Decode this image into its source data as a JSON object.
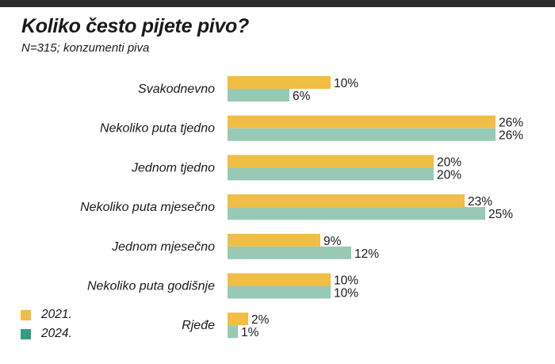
{
  "title": "Koliko često pijete pivo?",
  "subtitle": "N=315; konzumenti piva",
  "colors": {
    "y2021": "#f0bd45",
    "y2024": "#98c9b4",
    "legend2024": "#2f9f80",
    "topbar": "#2b2b2b"
  },
  "legend": [
    {
      "label": "2021.",
      "color": "#f0bd45"
    },
    {
      "label": "2024.",
      "color": "#2f9f80"
    }
  ],
  "chart_data": {
    "type": "bar",
    "orientation": "horizontal",
    "categories": [
      "Svakodnevno",
      "Nekoliko puta tjedno",
      "Jednom tjedno",
      "Nekoliko puta mjesečno",
      "Jednom mjesečno",
      "Nekoliko puta godišnje",
      "Rjeđe"
    ],
    "series": [
      {
        "name": "2021.",
        "values": [
          10,
          26,
          20,
          23,
          9,
          10,
          2
        ],
        "labels": [
          "10%",
          "26%",
          "20%",
          "23%",
          "9%",
          "10%",
          "2%"
        ]
      },
      {
        "name": "2024.",
        "values": [
          6,
          26,
          20,
          25,
          12,
          10,
          1
        ],
        "labels": [
          "6%",
          "26%",
          "20%",
          "25%",
          "12%",
          "10%",
          "1%"
        ]
      }
    ],
    "unit": "%",
    "xlim": [
      0,
      26
    ],
    "grid": false,
    "legend_position": "bottom-left"
  }
}
